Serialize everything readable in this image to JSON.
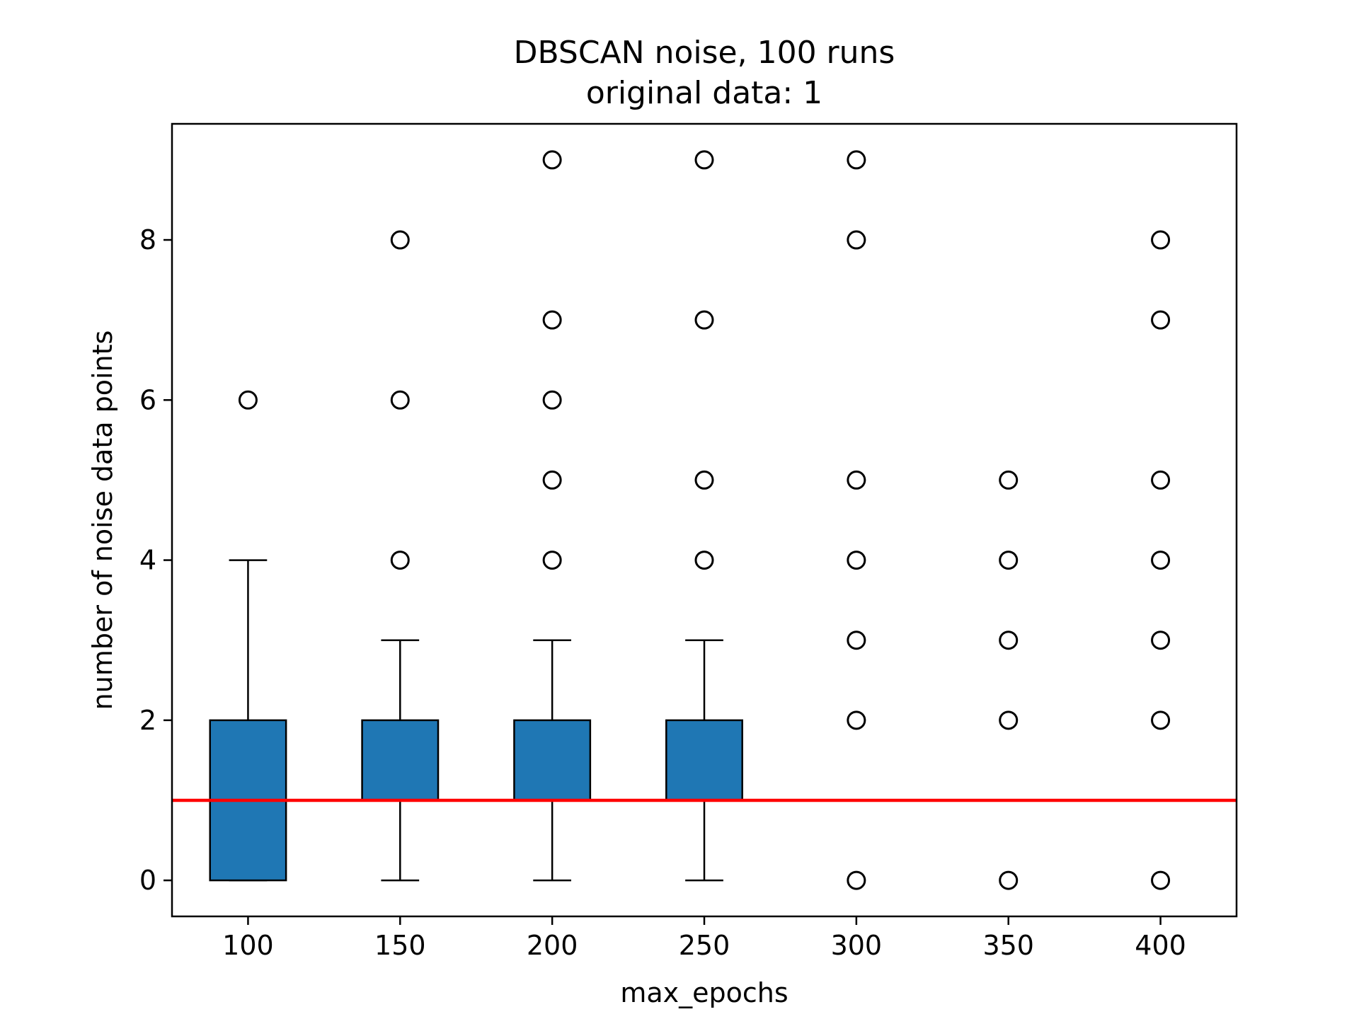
{
  "chart_data": {
    "type": "boxplot",
    "title": "DBSCAN noise, 100 runs",
    "subtitle": "original data: 1",
    "xlabel": "max_epochs",
    "ylabel": "number of noise data points",
    "categories": [
      "100",
      "150",
      "200",
      "250",
      "300",
      "350",
      "400"
    ],
    "ylim": [
      -0.45,
      9.45
    ],
    "yticks": [
      0,
      2,
      4,
      6,
      8
    ],
    "grid": false,
    "reference_line": {
      "y": 1,
      "color": "#ff0000"
    },
    "colors": {
      "box_fill": "#1f77b4",
      "median": "#ff7f0e",
      "edge": "#000000",
      "reference": "#ff0000"
    },
    "boxes": [
      {
        "category": "100",
        "q1": 0,
        "median": 1,
        "q3": 2,
        "whisker_low": 0,
        "whisker_high": 4,
        "outliers": [
          6
        ]
      },
      {
        "category": "150",
        "q1": 1,
        "median": 1,
        "q3": 2,
        "whisker_low": 0,
        "whisker_high": 3,
        "outliers": [
          4,
          6,
          8
        ]
      },
      {
        "category": "200",
        "q1": 1,
        "median": 1,
        "q3": 2,
        "whisker_low": 0,
        "whisker_high": 3,
        "outliers": [
          4,
          5,
          6,
          7,
          9
        ]
      },
      {
        "category": "250",
        "q1": 1,
        "median": 1,
        "q3": 2,
        "whisker_low": 0,
        "whisker_high": 3,
        "outliers": [
          4,
          5,
          7,
          9
        ]
      },
      {
        "category": "300",
        "q1": 1,
        "median": 1,
        "q3": 1,
        "whisker_low": 1,
        "whisker_high": 1,
        "outliers": [
          0,
          2,
          3,
          4,
          5,
          8,
          9
        ]
      },
      {
        "category": "350",
        "q1": 1,
        "median": 1,
        "q3": 1,
        "whisker_low": 1,
        "whisker_high": 1,
        "outliers": [
          0,
          2,
          3,
          4,
          5
        ]
      },
      {
        "category": "400",
        "q1": 1,
        "median": 1,
        "q3": 1,
        "whisker_low": 1,
        "whisker_high": 1,
        "outliers": [
          0,
          2,
          3,
          4,
          5,
          7,
          8
        ]
      }
    ]
  }
}
